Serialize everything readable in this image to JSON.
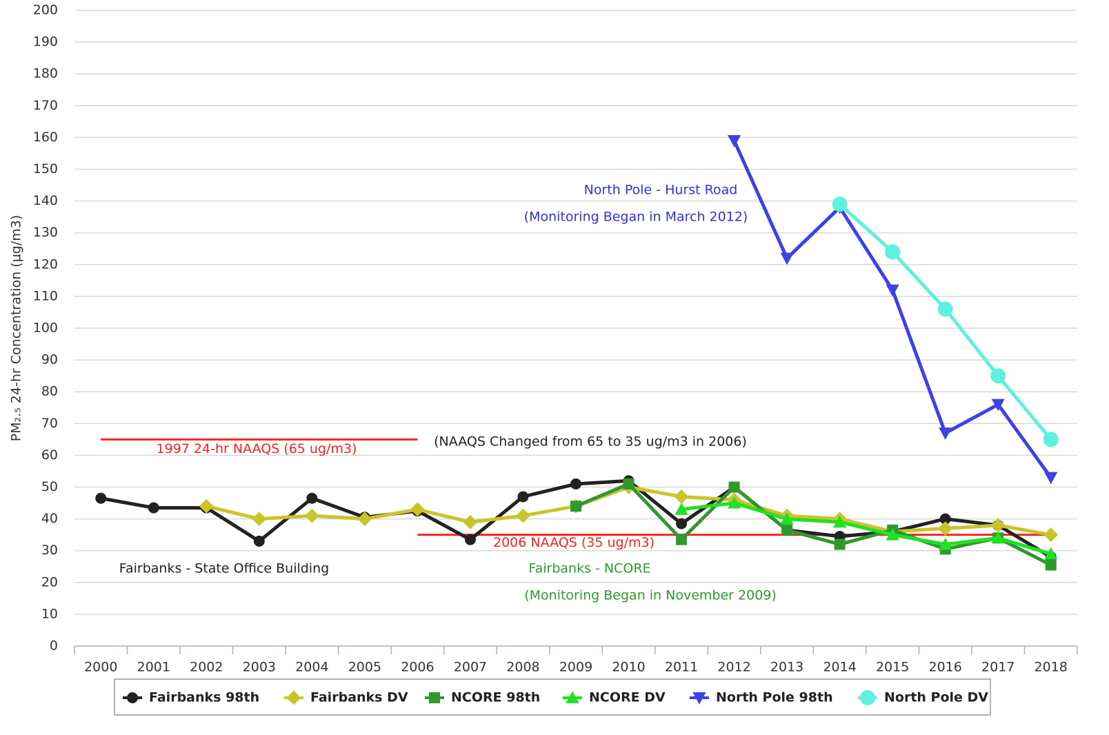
{
  "chart_data": {
    "type": "line",
    "y_label": "PM₂.₅ 24-hr Concentration (µg/m3)",
    "categories": [
      "2000",
      "2001",
      "2002",
      "2003",
      "2004",
      "2005",
      "2006",
      "2007",
      "2008",
      "2009",
      "2010",
      "2011",
      "2012",
      "2013",
      "2014",
      "2015",
      "2016",
      "2017",
      "2018"
    ],
    "ylim": [
      0,
      200
    ],
    "yticks": [
      0,
      10,
      20,
      30,
      40,
      50,
      60,
      70,
      80,
      90,
      100,
      110,
      120,
      130,
      140,
      150,
      160,
      170,
      180,
      190,
      200
    ],
    "grid": true,
    "legend": "bottom",
    "series": [
      {
        "name": "Fairbanks 98th",
        "color": "#222222",
        "marker": "circle",
        "values": [
          46.5,
          43.5,
          43.5,
          33,
          46.5,
          40.5,
          42.5,
          33.5,
          47,
          51,
          52,
          38.5,
          50,
          36.5,
          34.5,
          36,
          40,
          38,
          28
        ]
      },
      {
        "name": "Fairbanks DV",
        "color": "#c8c42a",
        "marker": "diamond",
        "values": [
          null,
          null,
          44,
          40,
          41,
          40,
          43,
          39,
          41,
          44,
          50,
          47,
          46,
          41,
          40,
          36,
          37,
          38,
          35
        ]
      },
      {
        "name": "NCORE 98th",
        "color": "#2e9a2e",
        "marker": "square",
        "values": [
          null,
          null,
          null,
          null,
          null,
          null,
          null,
          null,
          null,
          44,
          51,
          33.5,
          50,
          36.5,
          32,
          36.5,
          30.5,
          34,
          25.5
        ]
      },
      {
        "name": "NCORE DV",
        "color": "#22e022",
        "marker": "triangle",
        "values": [
          null,
          null,
          null,
          null,
          null,
          null,
          null,
          null,
          null,
          null,
          null,
          43,
          45,
          40,
          39,
          35,
          32,
          34,
          29
        ]
      },
      {
        "name": "North Pole 98th",
        "color": "#4040e8",
        "marker": "triangle-down",
        "values": [
          null,
          null,
          null,
          null,
          null,
          null,
          null,
          null,
          null,
          null,
          null,
          null,
          159,
          122,
          138,
          112,
          67,
          76,
          53
        ]
      },
      {
        "name": "North Pole DV",
        "color": "#60f0e0",
        "marker": "circle",
        "values": [
          null,
          null,
          null,
          null,
          null,
          null,
          null,
          null,
          null,
          null,
          null,
          null,
          null,
          null,
          139,
          124,
          106,
          85,
          65
        ]
      }
    ],
    "reference_lines": [
      {
        "label": "1997 24-hr NAAQS (65 ug/m3)",
        "value": 65,
        "from": "2000",
        "to": "2006",
        "color": "#ff2020"
      },
      {
        "label": "2006 NAAQS (35 ug/m3)",
        "value": 35,
        "from": "2006",
        "to": "2018",
        "color": "#ff2020"
      }
    ],
    "annotations": [
      {
        "text": "(NAAQS Changed from 65 to 35 ug/m3 in 2006)",
        "color": "#222222"
      },
      {
        "text": "North Pole - Hurst Road",
        "color": "#3030e0"
      },
      {
        "text": "(Monitoring Began in March 2012)",
        "color": "#3030e0"
      },
      {
        "text": "Fairbanks - State Office Building",
        "color": "#222222"
      },
      {
        "text": "Fairbanks - NCORE",
        "color": "#2e9a2e"
      },
      {
        "text": "(Monitoring Began in November 2009)",
        "color": "#2e9a2e"
      }
    ]
  }
}
